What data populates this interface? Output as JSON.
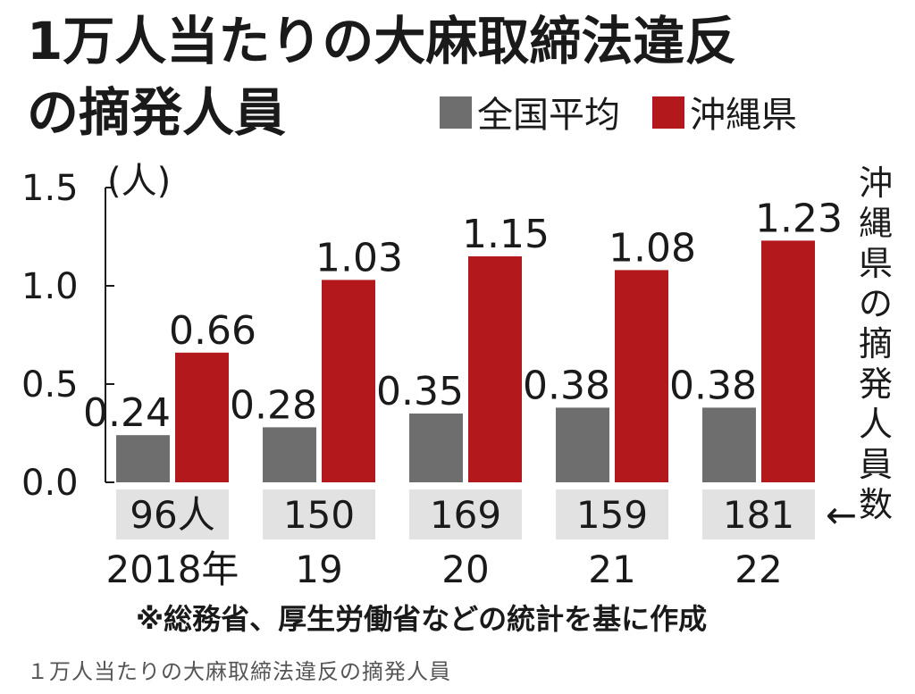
{
  "chart_data": {
    "type": "bar",
    "title": "1万人当たりの大麻取締法違反の摘発人員",
    "unit_label": "(人)",
    "categories": [
      "2018年",
      "19",
      "20",
      "21",
      "22"
    ],
    "series": [
      {
        "name": "全国平均",
        "values": [
          0.24,
          0.28,
          0.35,
          0.38,
          0.38
        ],
        "value_labels": [
          "0.24",
          "0.28",
          "0.35",
          "0.38",
          "0.38"
        ],
        "color": "#6e6e6e"
      },
      {
        "name": "沖縄県",
        "values": [
          0.66,
          1.03,
          1.15,
          1.08,
          1.23
        ],
        "value_labels": [
          "0.66",
          "1.03",
          "1.15",
          "1.08",
          "1.23"
        ],
        "color": "#b3191c"
      }
    ],
    "ylim": [
      0,
      1.5
    ],
    "yticks": [
      "0.0",
      "0.5",
      "1.0",
      "1.5"
    ],
    "ytick_values": [
      0,
      0.5,
      1.0,
      1.5
    ],
    "okinawa_counts": [
      "96人",
      "150",
      "169",
      "159",
      "181"
    ],
    "counts_label": "沖縄県の摘発人員数",
    "counts_arrow": "←",
    "source_note": "※総務省、厚生労働省などの統計を基に作成",
    "legend_position": "top-right",
    "grid": false
  },
  "caption": "１万人当たりの大麻取締法違反の摘発人員",
  "colors": {
    "national": "#6e6e6e",
    "okinawa": "#b3191c",
    "count_box": "#e2e2e2"
  }
}
